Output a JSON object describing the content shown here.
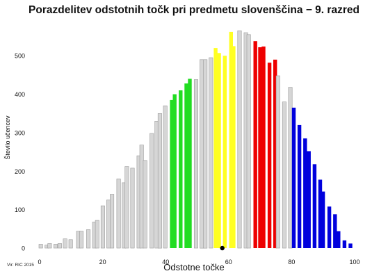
{
  "chart_data": {
    "type": "bar",
    "title": "Porazdelitev odstotnih točk pri predmetu slovenščina − 9. razred",
    "xlabel": "Odstotne točke",
    "ylabel": "Število učencev",
    "source": "Vir: RIC 2015",
    "xlim": [
      0,
      100
    ],
    "ylim": [
      0,
      560
    ],
    "xticks": [
      0,
      20,
      40,
      60,
      80,
      100
    ],
    "yticks": [
      0,
      100,
      200,
      300,
      400,
      500
    ],
    "grid": false,
    "legend": "none",
    "colors": {
      "gray": "#d6d6d6",
      "green": "#22dd22",
      "yellow": "#ffff22",
      "red": "#ee0000",
      "blue": "#0000dd",
      "marker": "#000000"
    },
    "bars": [
      {
        "x": 0.0,
        "y": 10,
        "band": "gray"
      },
      {
        "x": 1.9,
        "y": 8,
        "band": "gray"
      },
      {
        "x": 2.8,
        "y": 12,
        "band": "gray"
      },
      {
        "x": 4.7,
        "y": 10,
        "band": "gray"
      },
      {
        "x": 6.0,
        "y": 12,
        "band": "gray"
      },
      {
        "x": 7.7,
        "y": 24,
        "band": "gray"
      },
      {
        "x": 9.5,
        "y": 22,
        "band": "gray"
      },
      {
        "x": 11.9,
        "y": 44,
        "band": "gray"
      },
      {
        "x": 12.9,
        "y": 44,
        "band": "gray"
      },
      {
        "x": 15.1,
        "y": 48,
        "band": "gray"
      },
      {
        "x": 17.0,
        "y": 68,
        "band": "gray"
      },
      {
        "x": 17.9,
        "y": 72,
        "band": "gray"
      },
      {
        "x": 19.7,
        "y": 110,
        "band": "gray"
      },
      {
        "x": 21.5,
        "y": 125,
        "band": "gray"
      },
      {
        "x": 22.6,
        "y": 140,
        "band": "gray"
      },
      {
        "x": 24.7,
        "y": 180,
        "band": "gray"
      },
      {
        "x": 26.4,
        "y": 170,
        "band": "gray"
      },
      {
        "x": 27.3,
        "y": 212,
        "band": "gray"
      },
      {
        "x": 29.1,
        "y": 208,
        "band": "gray"
      },
      {
        "x": 31.1,
        "y": 240,
        "band": "gray"
      },
      {
        "x": 32.0,
        "y": 268,
        "band": "gray"
      },
      {
        "x": 33.1,
        "y": 228,
        "band": "gray"
      },
      {
        "x": 35.2,
        "y": 298,
        "band": "gray"
      },
      {
        "x": 36.8,
        "y": 330,
        "band": "gray"
      },
      {
        "x": 37.8,
        "y": 350,
        "band": "gray"
      },
      {
        "x": 39.5,
        "y": 370,
        "band": "gray"
      },
      {
        "x": 41.6,
        "y": 385,
        "band": "green"
      },
      {
        "x": 42.5,
        "y": 400,
        "band": "green"
      },
      {
        "x": 44.4,
        "y": 410,
        "band": "green"
      },
      {
        "x": 46.2,
        "y": 428,
        "band": "green"
      },
      {
        "x": 47.3,
        "y": 440,
        "band": "green"
      },
      {
        "x": 49.3,
        "y": 438,
        "band": "gray"
      },
      {
        "x": 51.1,
        "y": 490,
        "band": "gray"
      },
      {
        "x": 52.2,
        "y": 490,
        "band": "gray"
      },
      {
        "x": 54.0,
        "y": 495,
        "band": "gray"
      },
      {
        "x": 55.5,
        "y": 520,
        "band": "yellow"
      },
      {
        "x": 56.6,
        "y": 507,
        "band": "yellow"
      },
      {
        "x": 58.4,
        "y": 500,
        "band": "yellow"
      },
      {
        "x": 60.4,
        "y": 562,
        "band": "yellow"
      },
      {
        "x": 61.2,
        "y": 525,
        "band": "yellow"
      },
      {
        "x": 63.1,
        "y": 565,
        "band": "gray"
      },
      {
        "x": 65.1,
        "y": 560,
        "band": "gray"
      },
      {
        "x": 66.0,
        "y": 555,
        "band": "gray"
      },
      {
        "x": 68.1,
        "y": 538,
        "band": "red"
      },
      {
        "x": 69.6,
        "y": 522,
        "band": "red"
      },
      {
        "x": 70.7,
        "y": 524,
        "band": "red"
      },
      {
        "x": 72.6,
        "y": 482,
        "band": "red"
      },
      {
        "x": 74.4,
        "y": 490,
        "band": "red"
      },
      {
        "x": 75.3,
        "y": 448,
        "band": "gray"
      },
      {
        "x": 77.3,
        "y": 380,
        "band": "gray"
      },
      {
        "x": 79.2,
        "y": 418,
        "band": "gray"
      },
      {
        "x": 80.3,
        "y": 365,
        "band": "blue"
      },
      {
        "x": 82.1,
        "y": 320,
        "band": "blue"
      },
      {
        "x": 83.9,
        "y": 285,
        "band": "blue"
      },
      {
        "x": 85.1,
        "y": 252,
        "band": "blue"
      },
      {
        "x": 86.9,
        "y": 218,
        "band": "blue"
      },
      {
        "x": 88.7,
        "y": 178,
        "band": "blue"
      },
      {
        "x": 89.6,
        "y": 147,
        "band": "blue"
      },
      {
        "x": 91.6,
        "y": 108,
        "band": "blue"
      },
      {
        "x": 93.4,
        "y": 88,
        "band": "blue"
      },
      {
        "x": 94.5,
        "y": 44,
        "band": "blue"
      },
      {
        "x": 96.4,
        "y": 20,
        "band": "blue"
      },
      {
        "x": 98.3,
        "y": 12,
        "band": "blue"
      }
    ],
    "marker": {
      "x": 58.0,
      "y": 0
    }
  }
}
